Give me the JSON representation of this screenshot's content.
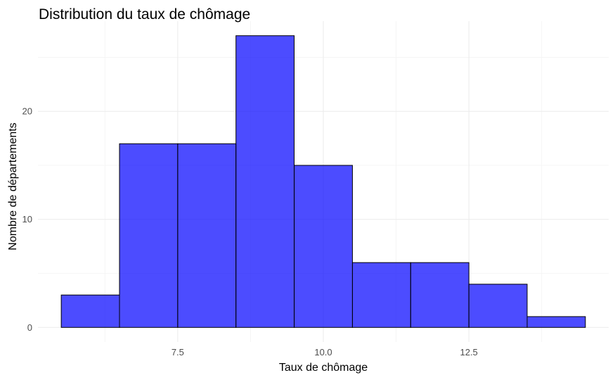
{
  "chart_data": {
    "type": "bar",
    "title": "Distribution du taux de chômage",
    "xlabel": "Taux de chômage",
    "ylabel": "Nombre de départements",
    "bins": [
      {
        "x0": 5.5,
        "x1": 6.5,
        "count": 3
      },
      {
        "x0": 6.5,
        "x1": 7.5,
        "count": 17
      },
      {
        "x0": 7.5,
        "x1": 8.5,
        "count": 17
      },
      {
        "x0": 8.5,
        "x1": 9.5,
        "count": 27
      },
      {
        "x0": 9.5,
        "x1": 10.5,
        "count": 15
      },
      {
        "x0": 10.5,
        "x1": 11.5,
        "count": 6
      },
      {
        "x0": 11.5,
        "x1": 12.5,
        "count": 6
      },
      {
        "x0": 12.5,
        "x1": 13.5,
        "count": 4
      },
      {
        "x0": 13.5,
        "x1": 14.5,
        "count": 1
      }
    ],
    "xlim": [
      5.1,
      14.9
    ],
    "ylim": [
      -1.35,
      28.35
    ],
    "x_ticks": [
      7.5,
      10.0,
      12.5
    ],
    "x_tick_labels": [
      "7.5",
      "10.0",
      "12.5"
    ],
    "y_ticks": [
      0,
      10,
      20
    ],
    "y_tick_labels": [
      "0",
      "10",
      "20"
    ],
    "grid": true,
    "legend": "none",
    "bar_fill": "#0000FF",
    "bar_opacity": 0.7,
    "bar_outline": "#000000"
  }
}
